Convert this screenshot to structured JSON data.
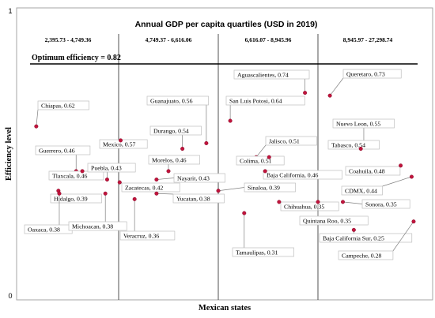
{
  "chart_data": {
    "type": "scatter",
    "title": "Annual GDP per capita quartiles (USD in 2019)",
    "xlabel": "Mexican states",
    "ylabel": "Efficiency level",
    "ylim": [
      0,
      1
    ],
    "y_ticks": [
      "0",
      "1"
    ],
    "grid": false,
    "quartiles": [
      {
        "label": "2,395.73 - 4,749.36"
      },
      {
        "label": "4,749.37 - 6,616.06"
      },
      {
        "label": "6,616.07 - 8,945.96"
      },
      {
        "label": "8,945.97 - 27,298.74"
      }
    ],
    "reference_line": {
      "label": "Optimum efficiency = 0.82",
      "value": 0.82
    },
    "points": [
      {
        "label": "Chiapas, 0.62",
        "quartile": 1,
        "y": 0.62
      },
      {
        "label": "Guerrero, 0.46",
        "quartile": 1,
        "y": 0.46
      },
      {
        "label": "Tlaxcala, 0.46",
        "quartile": 1,
        "y": 0.46
      },
      {
        "label": "Puebla, 0.43",
        "quartile": 1,
        "y": 0.43
      },
      {
        "label": "Hidalgo, 0.39",
        "quartile": 1,
        "y": 0.39
      },
      {
        "label": "Oaxaca, 0.38",
        "quartile": 1,
        "y": 0.38
      },
      {
        "label": "Michoacan, 0.38",
        "quartile": 1,
        "y": 0.38
      },
      {
        "label": "Guanajuato, 0.56",
        "quartile": 2,
        "y": 0.56
      },
      {
        "label": "Mexico, 0.57",
        "quartile": 2,
        "y": 0.57
      },
      {
        "label": "Durango, 0.54",
        "quartile": 2,
        "y": 0.54
      },
      {
        "label": "Morelos, 0.46",
        "quartile": 2,
        "y": 0.46
      },
      {
        "label": "Nayarit, 0.43",
        "quartile": 2,
        "y": 0.43
      },
      {
        "label": "Zacatecas, 0.42",
        "quartile": 2,
        "y": 0.42
      },
      {
        "label": "Yucatan, 0.38",
        "quartile": 2,
        "y": 0.38
      },
      {
        "label": "Veracruz, 0.36",
        "quartile": 2,
        "y": 0.36
      },
      {
        "label": "Aguascalientes, 0.74",
        "quartile": 3,
        "y": 0.74
      },
      {
        "label": "San Luis Potosi, 0.64",
        "quartile": 3,
        "y": 0.64
      },
      {
        "label": "Jalisco, 0.51",
        "quartile": 3,
        "y": 0.51
      },
      {
        "label": "Colima, 0.51",
        "quartile": 3,
        "y": 0.51
      },
      {
        "label": "Baja California, 0.46",
        "quartile": 3,
        "y": 0.46
      },
      {
        "label": "Sinaloa, 0.39",
        "quartile": 3,
        "y": 0.39
      },
      {
        "label": "Chihuahua, 0.35",
        "quartile": 3,
        "y": 0.35
      },
      {
        "label": "Tamaulipas, 0.31",
        "quartile": 3,
        "y": 0.31
      },
      {
        "label": "Queretaro, 0.73",
        "quartile": 4,
        "y": 0.73
      },
      {
        "label": "Nuevo Leon, 0.55",
        "quartile": 4,
        "y": 0.55
      },
      {
        "label": "Tabasco, 0.54",
        "quartile": 4,
        "y": 0.54
      },
      {
        "label": "Coahuila, 0.48",
        "quartile": 4,
        "y": 0.48
      },
      {
        "label": "CDMX, 0.44",
        "quartile": 4,
        "y": 0.44
      },
      {
        "label": "Sonora, 0.35",
        "quartile": 4,
        "y": 0.35
      },
      {
        "label": "Quintana Roo, 0.35",
        "quartile": 4,
        "y": 0.35
      },
      {
        "label": "Baja California Sur, 0.25",
        "quartile": 4,
        "y": 0.25
      },
      {
        "label": "Campeche, 0.28",
        "quartile": 4,
        "y": 0.28
      }
    ],
    "colors": {
      "point": "#c0143c",
      "frame": "#a6a6a6",
      "reference_line": "#000000"
    }
  }
}
